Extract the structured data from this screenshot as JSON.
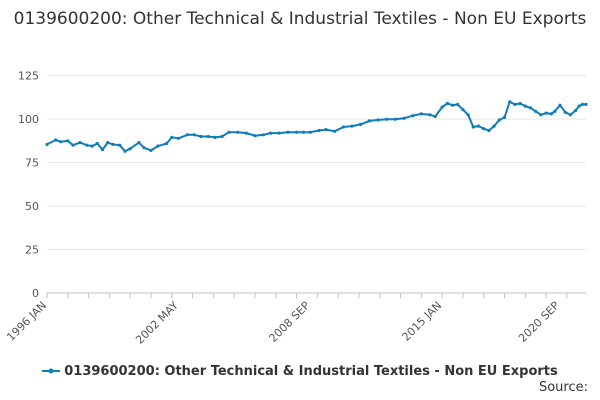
{
  "chart_data": {
    "type": "line",
    "title": "0139600200: Other Technical & Industrial Textiles - Non EU Exports",
    "xlabel": "",
    "ylabel": "",
    "x_start": "1996 JAN",
    "x_end": "2020 SEP",
    "x_tick_labels": [
      "1996 JAN",
      "2002 MAY",
      "2008 SEP",
      "2015 JAN",
      "2020 SEP"
    ],
    "y_ticks": [
      0,
      25,
      50,
      75,
      100,
      125
    ],
    "ylim": [
      0,
      130
    ],
    "grid": true,
    "legend_position": "bottom",
    "series": [
      {
        "name": "0139600200: Other Technical & Industrial Textiles - Non EU Exports",
        "color": "#0e7db8",
        "points": [
          [
            "1996-01",
            85.5
          ],
          [
            "1996-06",
            88.0
          ],
          [
            "1996-09",
            87.0
          ],
          [
            "1997-01",
            87.5
          ],
          [
            "1997-04",
            85.0
          ],
          [
            "1997-08",
            86.5
          ],
          [
            "1997-12",
            85.0
          ],
          [
            "1998-03",
            84.5
          ],
          [
            "1998-06",
            86.0
          ],
          [
            "1998-09",
            82.5
          ],
          [
            "1998-12",
            86.5
          ],
          [
            "1999-03",
            85.5
          ],
          [
            "1999-07",
            85.0
          ],
          [
            "1999-10",
            81.5
          ],
          [
            "2000-01",
            83.0
          ],
          [
            "2000-06",
            86.5
          ],
          [
            "2000-09",
            83.5
          ],
          [
            "2001-01",
            82.0
          ],
          [
            "2001-05",
            84.5
          ],
          [
            "2001-10",
            86.0
          ],
          [
            "2002-01",
            89.5
          ],
          [
            "2002-05",
            89.0
          ],
          [
            "2002-10",
            91.0
          ],
          [
            "2003-02",
            91.0
          ],
          [
            "2003-06",
            90.0
          ],
          [
            "2003-10",
            90.0
          ],
          [
            "2004-02",
            89.5
          ],
          [
            "2004-06",
            90.0
          ],
          [
            "2004-10",
            92.5
          ],
          [
            "2005-03",
            92.5
          ],
          [
            "2005-08",
            92.0
          ],
          [
            "2006-01",
            90.5
          ],
          [
            "2006-06",
            91.0
          ],
          [
            "2006-10",
            92.0
          ],
          [
            "2007-03",
            92.0
          ],
          [
            "2007-08",
            92.5
          ],
          [
            "2008-01",
            92.5
          ],
          [
            "2008-05",
            92.5
          ],
          [
            "2008-09",
            92.5
          ],
          [
            "2009-02",
            93.5
          ],
          [
            "2009-06",
            94.0
          ],
          [
            "2009-11",
            93.0
          ],
          [
            "2010-04",
            95.5
          ],
          [
            "2010-09",
            96.0
          ],
          [
            "2011-02",
            97.0
          ],
          [
            "2011-07",
            99.0
          ],
          [
            "2011-12",
            99.5
          ],
          [
            "2012-05",
            100.0
          ],
          [
            "2012-10",
            100.0
          ],
          [
            "2013-03",
            100.5
          ],
          [
            "2013-08",
            102.0
          ],
          [
            "2014-01",
            103.0
          ],
          [
            "2014-06",
            102.5
          ],
          [
            "2014-09",
            101.5
          ],
          [
            "2015-01",
            107.0
          ],
          [
            "2015-04",
            109.0
          ],
          [
            "2015-07",
            108.0
          ],
          [
            "2015-10",
            108.5
          ],
          [
            "2016-01",
            105.5
          ],
          [
            "2016-04",
            102.5
          ],
          [
            "2016-07",
            95.5
          ],
          [
            "2016-10",
            96.0
          ],
          [
            "2017-01",
            94.5
          ],
          [
            "2017-04",
            93.5
          ],
          [
            "2017-07",
            96.0
          ],
          [
            "2017-10",
            99.5
          ],
          [
            "2018-01",
            101.0
          ],
          [
            "2018-04",
            110.0
          ],
          [
            "2018-07",
            108.5
          ],
          [
            "2018-10",
            109.0
          ],
          [
            "2019-01",
            107.5
          ],
          [
            "2019-04",
            106.5
          ],
          [
            "2019-07",
            104.5
          ],
          [
            "2019-10",
            102.5
          ],
          [
            "2020-01",
            103.5
          ],
          [
            "2020-04",
            103.0
          ],
          [
            "2020-06",
            104.5
          ],
          [
            "2020-09",
            108.0
          ],
          [
            "2020-12",
            104.0
          ],
          [
            "2021-03",
            102.5
          ],
          [
            "2021-06",
            105.0
          ],
          [
            "2021-08",
            107.5
          ],
          [
            "2021-10",
            108.5
          ],
          [
            "2021-12",
            108.5
          ]
        ]
      }
    ]
  },
  "source_label": "Source:"
}
